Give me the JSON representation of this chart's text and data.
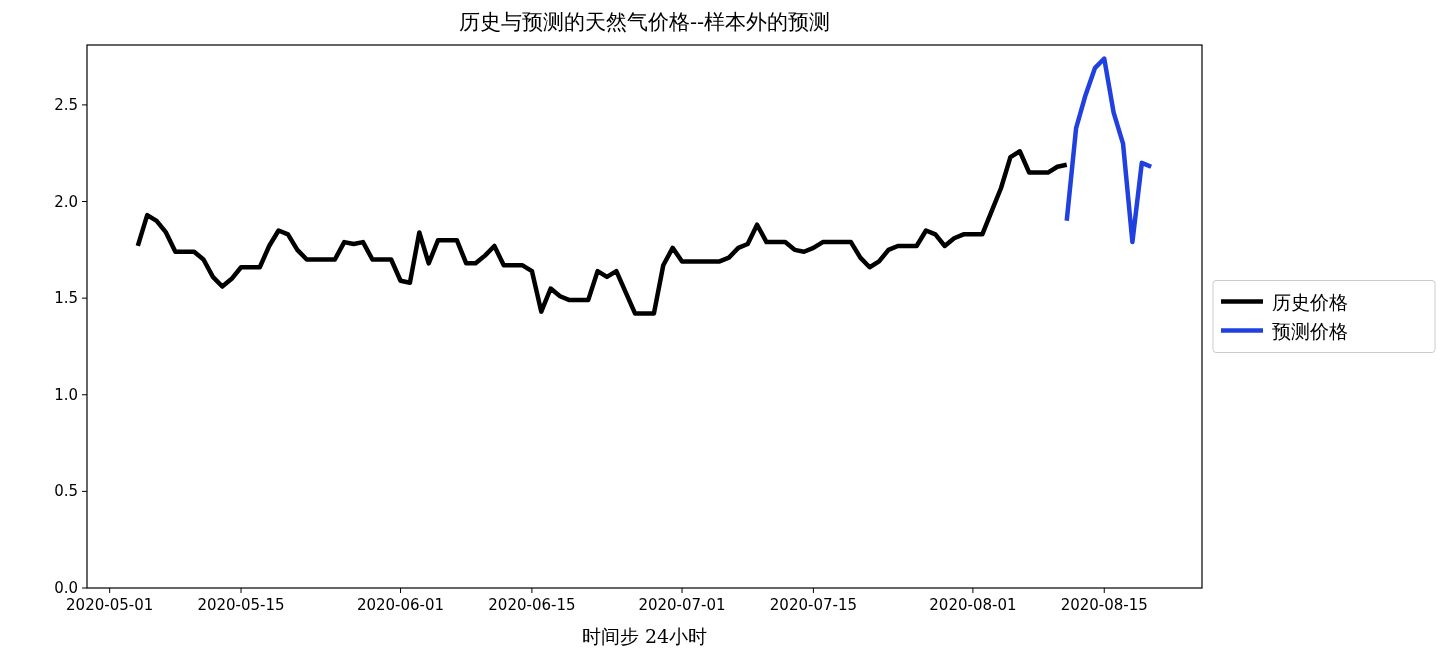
{
  "chart_data": {
    "type": "line",
    "title": "历史与预测的天然气价格--样本外的预测",
    "xlabel": "时间步 24小时",
    "xlim": [
      "2020-04-28T14:00",
      "2020-08-25T10:00"
    ],
    "xticks": [
      {
        "value": "2020-05-01",
        "label": "2020-05-01"
      },
      {
        "value": "2020-05-15",
        "label": "2020-05-15"
      },
      {
        "value": "2020-06-01",
        "label": "2020-06-01"
      },
      {
        "value": "2020-06-15",
        "label": "2020-06-15"
      },
      {
        "value": "2020-07-01",
        "label": "2020-07-01"
      },
      {
        "value": "2020-07-15",
        "label": "2020-07-15"
      },
      {
        "value": "2020-08-01",
        "label": "2020-08-01"
      },
      {
        "value": "2020-08-15",
        "label": "2020-08-15"
      }
    ],
    "ylim": [
      0,
      2.81
    ],
    "yticks": [
      {
        "value": 0,
        "label": "0.0"
      },
      {
        "value": 0.5,
        "label": "0.5"
      },
      {
        "value": 1,
        "label": "1.0"
      },
      {
        "value": 1.5,
        "label": "1.5"
      },
      {
        "value": 2,
        "label": "2.0"
      },
      {
        "value": 2.5,
        "label": "2.5"
      }
    ],
    "grid": false,
    "legend": "right",
    "line_style": "solid",
    "marker": "none",
    "series": [
      {
        "name": "历史价格",
        "color": "#000000",
        "x": [
          "2020-05-04",
          "2020-05-05",
          "2020-05-06",
          "2020-05-07",
          "2020-05-08",
          "2020-05-10",
          "2020-05-11",
          "2020-05-12",
          "2020-05-13",
          "2020-05-14",
          "2020-05-15",
          "2020-05-17",
          "2020-05-18",
          "2020-05-19",
          "2020-05-20",
          "2020-05-21",
          "2020-05-22",
          "2020-05-25",
          "2020-05-26",
          "2020-05-27",
          "2020-05-28",
          "2020-05-29",
          "2020-05-31",
          "2020-06-01",
          "2020-06-02",
          "2020-06-03",
          "2020-06-04",
          "2020-06-05",
          "2020-06-07",
          "2020-06-08",
          "2020-06-09",
          "2020-06-10",
          "2020-06-11",
          "2020-06-12",
          "2020-06-14",
          "2020-06-15",
          "2020-06-16",
          "2020-06-17",
          "2020-06-18",
          "2020-06-19",
          "2020-06-21",
          "2020-06-22",
          "2020-06-23",
          "2020-06-24",
          "2020-06-25",
          "2020-06-26",
          "2020-06-28",
          "2020-06-29",
          "2020-06-30",
          "2020-07-01",
          "2020-07-05",
          "2020-07-06",
          "2020-07-07",
          "2020-07-08",
          "2020-07-09",
          "2020-07-10",
          "2020-07-12",
          "2020-07-13",
          "2020-07-14",
          "2020-07-15",
          "2020-07-16",
          "2020-07-19",
          "2020-07-20",
          "2020-07-21",
          "2020-07-22",
          "2020-07-23",
          "2020-07-24",
          "2020-07-26",
          "2020-07-27",
          "2020-07-28",
          "2020-07-29",
          "2020-07-30",
          "2020-07-31",
          "2020-08-02",
          "2020-08-03",
          "2020-08-04",
          "2020-08-05",
          "2020-08-06",
          "2020-08-07",
          "2020-08-09",
          "2020-08-10",
          "2020-08-11"
        ],
        "values": [
          1.77,
          1.93,
          1.9,
          1.84,
          1.74,
          1.74,
          1.7,
          1.61,
          1.56,
          1.6,
          1.66,
          1.66,
          1.77,
          1.85,
          1.83,
          1.75,
          1.7,
          1.7,
          1.79,
          1.78,
          1.79,
          1.7,
          1.7,
          1.59,
          1.58,
          1.84,
          1.68,
          1.8,
          1.8,
          1.68,
          1.68,
          1.72,
          1.77,
          1.67,
          1.67,
          1.64,
          1.43,
          1.55,
          1.51,
          1.49,
          1.49,
          1.64,
          1.61,
          1.64,
          1.53,
          1.42,
          1.42,
          1.67,
          1.76,
          1.69,
          1.69,
          1.71,
          1.76,
          1.78,
          1.88,
          1.79,
          1.79,
          1.75,
          1.74,
          1.76,
          1.79,
          1.79,
          1.71,
          1.66,
          1.69,
          1.75,
          1.77,
          1.77,
          1.85,
          1.83,
          1.77,
          1.81,
          1.83,
          1.83,
          1.95,
          2.07,
          2.23,
          2.26,
          2.15,
          2.15,
          2.18,
          2.19
        ]
      },
      {
        "name": "预测价格",
        "color": "#2040e0",
        "x": [
          "2020-08-11",
          "2020-08-12",
          "2020-08-13",
          "2020-08-14",
          "2020-08-15",
          "2020-08-16",
          "2020-08-17",
          "2020-08-18",
          "2020-08-19",
          "2020-08-20"
        ],
        "values": [
          1.9,
          2.38,
          2.55,
          2.69,
          2.74,
          2.46,
          2.3,
          1.79,
          2.2,
          2.18
        ]
      }
    ]
  }
}
